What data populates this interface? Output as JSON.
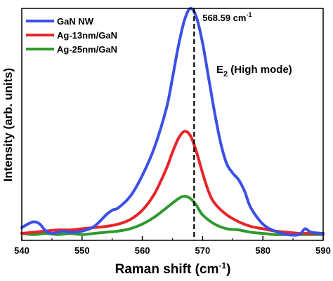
{
  "chart_data": {
    "type": "line",
    "xlabel": "Raman shift (cm",
    "xlabel_sup": "-1",
    "xlabel_end": ")",
    "ylabel": "Intensity (arb. units)",
    "xlim": [
      540,
      590
    ],
    "ylim": [
      0,
      100
    ],
    "x_ticks": [
      540,
      550,
      560,
      570,
      580,
      590
    ],
    "y_ticks_shown": false,
    "legend_position": "top-left",
    "annotations": {
      "peak_line_x": 568.59,
      "peak_label": "568.59 cm",
      "peak_label_sup": "-1",
      "mode_label_main": "E",
      "mode_label_sub": "2",
      "mode_label_rest": " (High mode)"
    },
    "series": [
      {
        "name": "GaN NW",
        "color": "#3a50e6",
        "x": [
          540,
          541,
          542,
          543,
          544,
          545,
          546,
          547,
          548,
          550,
          552,
          554,
          555,
          556,
          558,
          560,
          562,
          564,
          565,
          566,
          567,
          568,
          569,
          570,
          571,
          572,
          573,
          574,
          575,
          576,
          577,
          578,
          580,
          582,
          584,
          586,
          587,
          588,
          590
        ],
        "y": [
          5.5,
          7,
          8,
          7,
          4,
          3,
          3.5,
          4,
          3.5,
          4,
          6,
          11,
          13,
          14,
          19,
          28,
          40,
          57,
          70,
          84,
          95,
          100,
          96,
          85,
          70,
          55,
          42,
          33,
          29,
          26,
          21,
          14,
          7,
          4,
          2.5,
          2.5,
          5,
          3.5,
          3
        ]
      },
      {
        "name": "Ag-13nm/GaN",
        "color": "#e8242a",
        "x": [
          540,
          542,
          544,
          546,
          548,
          550,
          552,
          554,
          556,
          558,
          560,
          562,
          564,
          565,
          566,
          567,
          568,
          569,
          570,
          571,
          572,
          574,
          576,
          578,
          580,
          582,
          584,
          586,
          588,
          590
        ],
        "y": [
          3,
          3.5,
          4,
          4.5,
          4.5,
          5,
          5.5,
          6,
          7,
          9,
          13,
          20,
          31,
          38,
          44,
          47,
          45,
          38,
          29,
          21,
          16,
          11,
          8,
          6,
          5,
          4,
          3.5,
          3,
          3,
          3
        ]
      },
      {
        "name": "Ag-25nm/GaN",
        "color": "#2e9a2e",
        "x": [
          540,
          542,
          544,
          546,
          548,
          550,
          552,
          554,
          556,
          558,
          560,
          562,
          564,
          566,
          567,
          568,
          569,
          570,
          572,
          574,
          576,
          578,
          580,
          582,
          584,
          586,
          588,
          590
        ],
        "y": [
          3,
          2.5,
          3,
          2.5,
          3,
          2.5,
          3,
          3.5,
          4,
          5,
          7,
          10,
          14,
          18,
          19,
          18,
          15,
          11,
          7,
          5,
          4.5,
          3.5,
          3,
          2.5,
          2.5,
          2.5,
          2.5,
          2.5
        ]
      }
    ]
  }
}
